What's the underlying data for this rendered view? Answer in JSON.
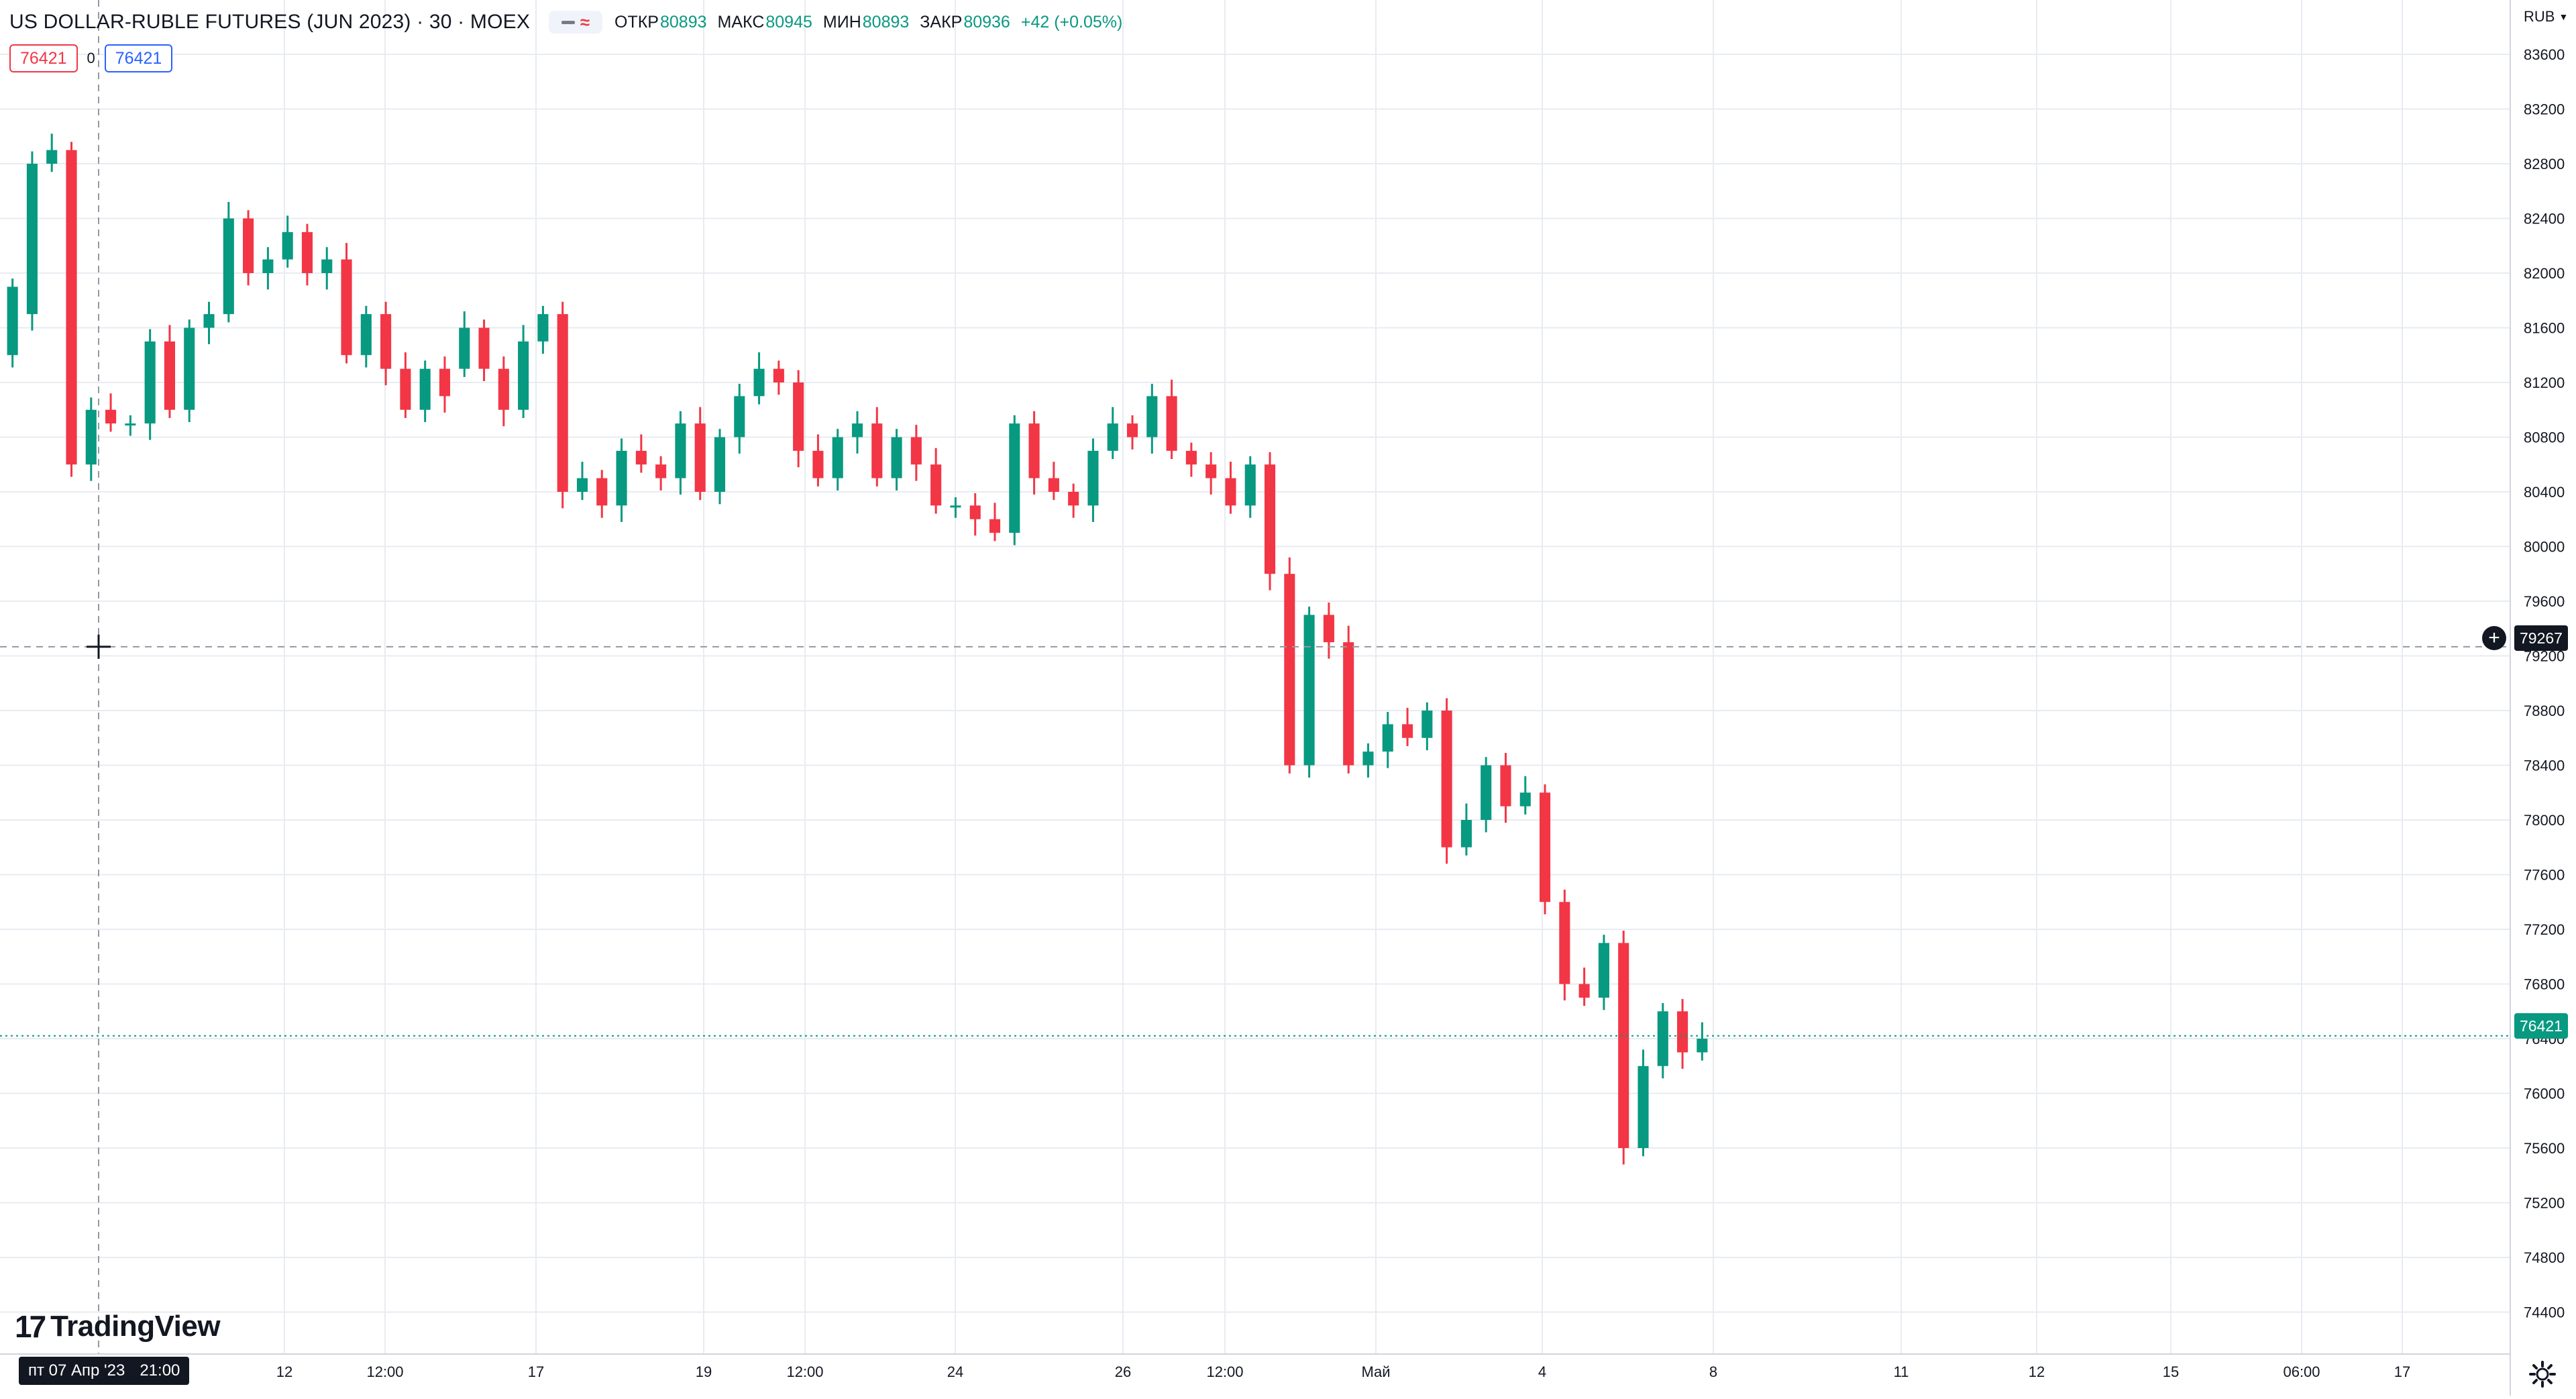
{
  "header": {
    "symbol": "US DOLLAR-RUBLE FUTURES (JUN 2023) · 30 · MOEX",
    "ohlc": [
      {
        "key": "ОТКР",
        "value": "80893"
      },
      {
        "key": "МАКС",
        "value": "80945"
      },
      {
        "key": "МИН",
        "value": "80893"
      },
      {
        "key": "ЗАКР",
        "value": "80936"
      }
    ],
    "change": "+42 (+0.05%)"
  },
  "trade": {
    "sell": "76421",
    "spread": "0",
    "buy": "76421"
  },
  "branding": {
    "logo_mark": "17",
    "logo_text": "TradingView"
  },
  "currency": "RUB",
  "crosshair": {
    "date_label": "пт 07 Апр '23",
    "time_label": "21:00",
    "price_label": "79267"
  },
  "last_price_label": "76421",
  "colors": {
    "up": "#089981",
    "down": "#f23645",
    "grid": "#e8ebf1",
    "text": "#131722"
  },
  "chart_data": {
    "type": "candlestick",
    "interval": "30",
    "ylim": [
      74000,
      83800
    ],
    "y_ticks": [
      74400,
      74800,
      75200,
      75600,
      76000,
      76400,
      76800,
      77200,
      77600,
      78000,
      78400,
      78800,
      79200,
      79600,
      80000,
      80400,
      80800,
      81200,
      81600,
      82000,
      82400,
      82800,
      83200,
      83600
    ],
    "x_ticks": [
      "12",
      "12:00",
      "17",
      "19",
      "12:00",
      "24",
      "26",
      "12:00",
      "Май",
      "4",
      "8",
      "11",
      "12",
      "15",
      "06:00",
      "17"
    ],
    "last_price": 76421,
    "crosshair_price": 79267,
    "points": [
      [
        81400,
        81900
      ],
      [
        81700,
        82800
      ],
      [
        82800,
        82900
      ],
      [
        82900,
        80600
      ],
      [
        80600,
        81000
      ],
      [
        81000,
        80900
      ],
      [
        80900,
        80900
      ],
      [
        80900,
        81500
      ],
      [
        81500,
        81000
      ],
      [
        81000,
        81600
      ],
      [
        81600,
        81700
      ],
      [
        81700,
        82400
      ],
      [
        82400,
        82000
      ],
      [
        82000,
        82100
      ],
      [
        82100,
        82300
      ],
      [
        82300,
        82000
      ],
      [
        82000,
        82100
      ],
      [
        82100,
        81400
      ],
      [
        81400,
        81700
      ],
      [
        81700,
        81300
      ],
      [
        81300,
        81000
      ],
      [
        81000,
        81300
      ],
      [
        81300,
        81100
      ],
      [
        81300,
        81600
      ],
      [
        81600,
        81300
      ],
      [
        81300,
        81000
      ],
      [
        81000,
        81500
      ],
      [
        81500,
        81700
      ],
      [
        81700,
        80400
      ],
      [
        80400,
        80500
      ],
      [
        80500,
        80300
      ],
      [
        80300,
        80700
      ],
      [
        80700,
        80600
      ],
      [
        80600,
        80500
      ],
      [
        80500,
        80900
      ],
      [
        80900,
        80400
      ],
      [
        80400,
        80800
      ],
      [
        80800,
        81100
      ],
      [
        81100,
        81300
      ],
      [
        81300,
        81200
      ],
      [
        81200,
        80700
      ],
      [
        80700,
        80500
      ],
      [
        80500,
        80800
      ],
      [
        80800,
        80900
      ],
      [
        80900,
        80500
      ],
      [
        80500,
        80800
      ],
      [
        80800,
        80600
      ],
      [
        80600,
        80300
      ],
      [
        80300,
        80300
      ],
      [
        80300,
        80200
      ],
      [
        80200,
        80100
      ],
      [
        80100,
        80900
      ],
      [
        80900,
        80500
      ],
      [
        80500,
        80400
      ],
      [
        80400,
        80300
      ],
      [
        80300,
        80700
      ],
      [
        80700,
        80900
      ],
      [
        80900,
        80800
      ],
      [
        80800,
        81100
      ],
      [
        81100,
        80700
      ],
      [
        80700,
        80600
      ],
      [
        80600,
        80500
      ],
      [
        80500,
        80300
      ],
      [
        80300,
        80600
      ],
      [
        80600,
        79800
      ],
      [
        79800,
        78400
      ],
      [
        78400,
        79500
      ],
      [
        79500,
        79300
      ],
      [
        79300,
        78400
      ],
      [
        78400,
        78500
      ],
      [
        78500,
        78700
      ],
      [
        78700,
        78600
      ],
      [
        78600,
        78800
      ],
      [
        78800,
        77800
      ],
      [
        77800,
        78000
      ],
      [
        78000,
        78400
      ],
      [
        78400,
        78100
      ],
      [
        78100,
        78200
      ],
      [
        78200,
        77400
      ],
      [
        77400,
        76800
      ],
      [
        76800,
        76700
      ],
      [
        76700,
        77100
      ],
      [
        77100,
        75600
      ],
      [
        75600,
        76200
      ],
      [
        76200,
        76600
      ],
      [
        76600,
        76300
      ],
      [
        76300,
        76400
      ]
    ]
  }
}
